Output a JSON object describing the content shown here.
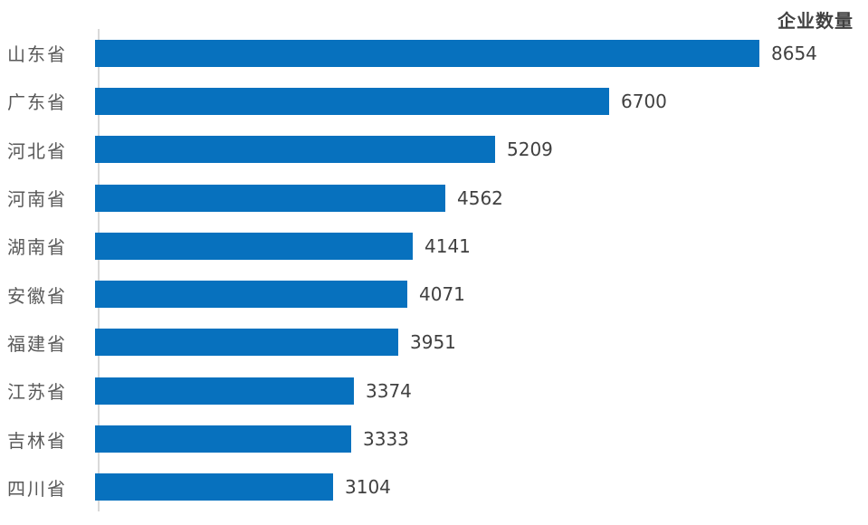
{
  "chart_data": {
    "type": "bar",
    "orientation": "horizontal",
    "title": "企业数量",
    "categories": [
      "山东省",
      "广东省",
      "河北省",
      "河南省",
      "湖南省",
      "安徽省",
      "福建省",
      "江苏省",
      "吉林省",
      "四川省"
    ],
    "values": [
      8654,
      6700,
      5209,
      4562,
      4141,
      4071,
      3951,
      3374,
      3333,
      3104
    ],
    "value_labels_shown": true,
    "xlabel": "",
    "ylabel": "",
    "xlim": [
      0,
      8654
    ],
    "grid": false,
    "legend": "none",
    "colors": {
      "bar": "#0771be",
      "axis_line": "#d9d9d9",
      "category_label": "#595959",
      "value_label": "#404040",
      "title": "#404040",
      "background": "#ffffff"
    }
  }
}
